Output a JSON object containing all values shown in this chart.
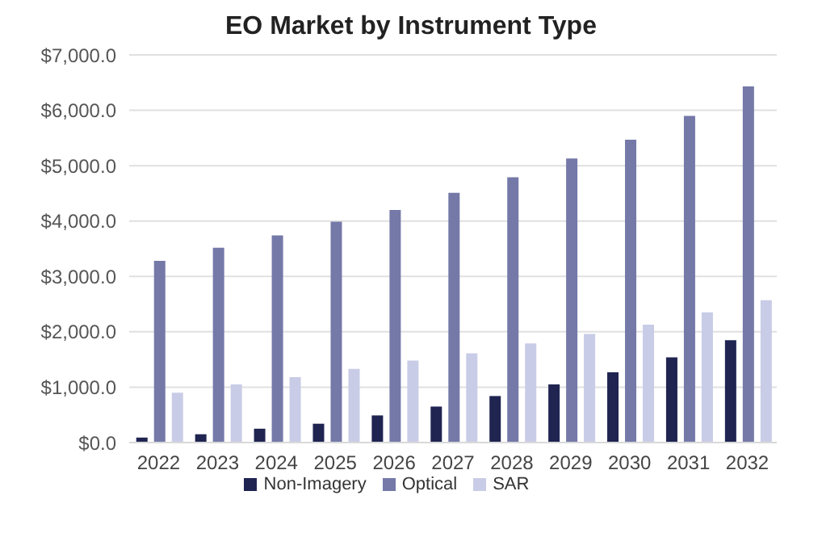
{
  "chart_data": {
    "type": "bar",
    "title": "EO Market by Instrument Type",
    "categories": [
      "2022",
      "2023",
      "2024",
      "2025",
      "2026",
      "2027",
      "2028",
      "2029",
      "2030",
      "2031",
      "2032"
    ],
    "series": [
      {
        "name": "Non-Imagery",
        "color": "#1f2451",
        "values": [
          90,
          150,
          250,
          340,
          490,
          650,
          840,
          1050,
          1270,
          1540,
          1850
        ]
      },
      {
        "name": "Optical",
        "color": "#7479a8",
        "values": [
          3280,
          3520,
          3740,
          3990,
          4200,
          4510,
          4790,
          5130,
          5470,
          5900,
          6430
        ]
      },
      {
        "name": "SAR",
        "color": "#c9cce6",
        "values": [
          900,
          1050,
          1180,
          1330,
          1480,
          1610,
          1790,
          1960,
          2130,
          2350,
          2570
        ]
      }
    ],
    "ylim": [
      0,
      7000
    ],
    "yticks": [
      {
        "value": 0,
        "label": "$0.0"
      },
      {
        "value": 1000,
        "label": "$1,000.0"
      },
      {
        "value": 2000,
        "label": "$2,000.0"
      },
      {
        "value": 3000,
        "label": "$3,000.0"
      },
      {
        "value": 4000,
        "label": "$4,000.0"
      },
      {
        "value": 5000,
        "label": "$5,000.0"
      },
      {
        "value": 6000,
        "label": "$6,000.0"
      },
      {
        "value": 7000,
        "label": "$7,000.0"
      }
    ],
    "grid": "y",
    "legend": "bottom"
  }
}
